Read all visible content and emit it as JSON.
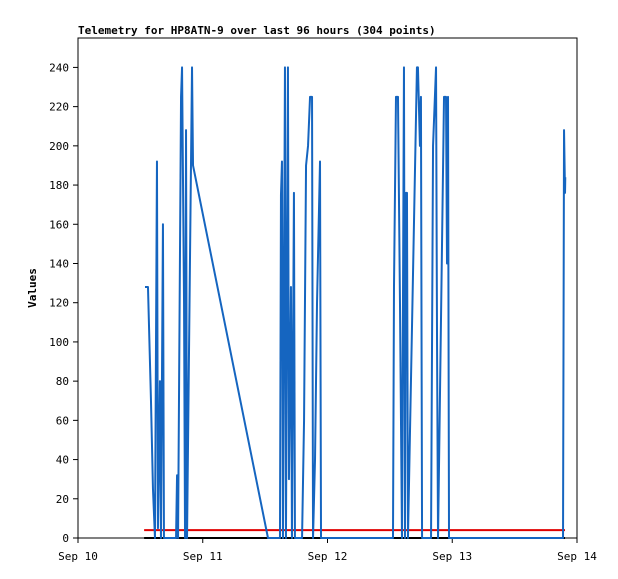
{
  "chart_data": {
    "type": "line",
    "title": "Telemetry for HP8ATN-9 over last 96 hours (304 points)",
    "ylabel": "Values",
    "xlim": [
      0,
      4
    ],
    "xticks": [
      {
        "value": 0,
        "label": "Sep 10"
      },
      {
        "value": 1,
        "label": "Sep 11"
      },
      {
        "value": 2,
        "label": "Sep 12"
      },
      {
        "value": 3,
        "label": "Sep 13"
      },
      {
        "value": 4,
        "label": "Sep 14"
      }
    ],
    "ylim": [
      0,
      255
    ],
    "yticks": [
      0,
      20,
      40,
      60,
      80,
      100,
      120,
      140,
      160,
      180,
      200,
      220,
      240
    ],
    "series": [
      {
        "color": "#1565c0",
        "x": [
          0.537,
          0.561,
          0.585,
          0.601,
          0.617,
          0.633,
          0.641,
          0.657,
          0.665,
          0.681,
          0.689,
          0.786,
          0.794,
          0.802,
          0.826,
          0.834,
          0.85,
          0.858,
          0.866,
          0.874,
          0.914,
          0.922,
          1.523,
          1.619,
          1.627,
          1.635,
          1.643,
          1.659,
          1.667,
          1.683,
          1.691,
          1.707,
          1.715,
          1.731,
          1.739,
          1.796,
          1.812,
          1.828,
          1.844,
          1.86,
          1.876,
          1.884,
          1.9,
          1.916,
          1.94,
          1.948,
          2.525,
          2.533,
          2.549,
          2.565,
          2.581,
          2.597,
          2.613,
          2.621,
          2.629,
          2.637,
          2.645,
          2.717,
          2.725,
          2.741,
          2.749,
          2.758,
          2.83,
          2.846,
          2.87,
          2.878,
          2.886,
          2.934,
          2.95,
          2.958,
          2.966,
          2.974,
          3.888,
          3.896,
          3.904,
          3.906
        ],
        "values": [
          128,
          128,
          70,
          25,
          0,
          192,
          5,
          80,
          0,
          160,
          0,
          0,
          32,
          0,
          225,
          240,
          120,
          0,
          208,
          0,
          240,
          190,
          0,
          0,
          175,
          192,
          0,
          240,
          0,
          240,
          30,
          128,
          0,
          176,
          0,
          0,
          60,
          190,
          200,
          225,
          225,
          0,
          40,
          120,
          192,
          0,
          0,
          128,
          225,
          225,
          120,
          0,
          240,
          0,
          176,
          176,
          0,
          240,
          240,
          200,
          225,
          0,
          0,
          200,
          240,
          100,
          0,
          225,
          225,
          140,
          225,
          0,
          0,
          208,
          176,
          184
        ]
      },
      {
        "color": "#e00000",
        "x": [
          0.53,
          3.904
        ],
        "values": [
          4,
          4
        ]
      },
      {
        "color": "#000000",
        "x": [
          0.53,
          3.904
        ],
        "values": [
          0,
          0
        ]
      }
    ]
  }
}
